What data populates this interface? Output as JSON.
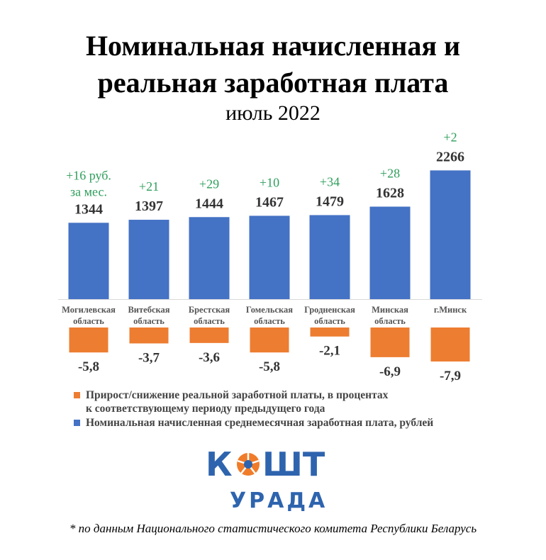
{
  "title_line1": "Номинальная начисленная и",
  "title_line2": "реальная заработная плата",
  "subtitle": "июль 2022",
  "chart_data": {
    "type": "bar",
    "categories": [
      [
        "Могилевская",
        "область"
      ],
      [
        "Витебская",
        "область"
      ],
      [
        "Брестская",
        "область"
      ],
      [
        "Гомельская",
        "область"
      ],
      [
        "Гродненская",
        "область"
      ],
      [
        "Минская",
        "область"
      ],
      [
        "г.Минск"
      ]
    ],
    "series": [
      {
        "name": "Номинальная начисленная среднемесячная заработная плата, рублей",
        "values": [
          1344,
          1397,
          1444,
          1467,
          1479,
          1628,
          2266
        ],
        "value_labels": [
          "1344",
          "1397",
          "1444",
          "1467",
          "1479",
          "1628",
          "2266"
        ],
        "color": "#4472C4"
      },
      {
        "name": "Прирост/снижение реальной заработной платы, в процентах к соответствующему периоду предыдущего года",
        "values": [
          -5.8,
          -3.7,
          -3.6,
          -5.8,
          -2.1,
          -6.9,
          -7.9
        ],
        "value_labels": [
          "-5,8",
          "-3,7",
          "-3,6",
          "-5,8",
          "-2,1",
          "-6,9",
          "-7,9"
        ],
        "color": "#ED7D31"
      }
    ],
    "nominal_change_labels": [
      [
        "+16 руб.",
        "за мес."
      ],
      [
        "+21"
      ],
      [
        "+29"
      ],
      [
        "+10"
      ],
      [
        "+34"
      ],
      [
        "+28"
      ],
      [
        "+2"
      ]
    ],
    "change_label_color": "#2E9E5B",
    "legend_placement": "bottom",
    "legend": [
      {
        "text_line1": "Прирост/снижение реальной заработной платы, в процентах",
        "text_line2": "к соответствующему периоду предыдущего года",
        "color": "#ED7D31"
      },
      {
        "text_line1": "Номинальная начисленная среднемесячная заработная плата, рублей",
        "color": "#4472C4"
      }
    ]
  },
  "logo": {
    "word1": "КОШТ",
    "word2": "УРАДА",
    "color": "#2E64AE",
    "accent_color": "#F07C2A"
  },
  "footnote": "* по данным Национального статистического комитета Республики Беларусь"
}
